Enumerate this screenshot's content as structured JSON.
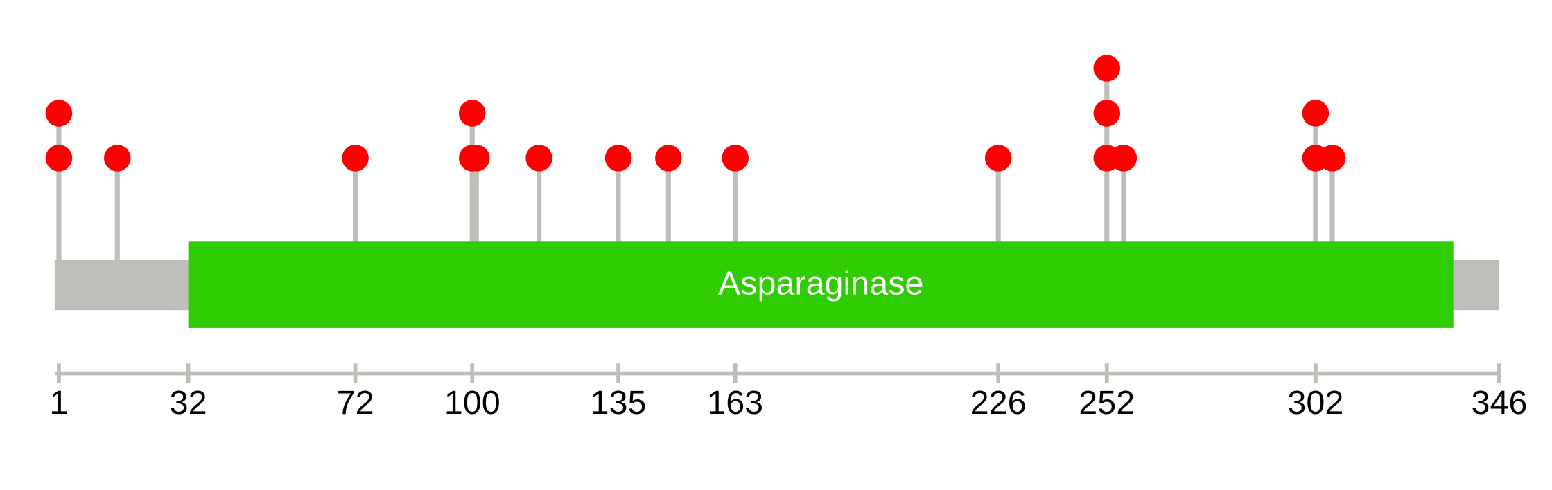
{
  "chart_data": {
    "type": "lollipop",
    "xlim": [
      0,
      346
    ],
    "xticks": [
      1,
      32,
      72,
      100,
      135,
      163,
      226,
      252,
      302,
      346
    ],
    "protein_color": "#bebeb9",
    "domains": [
      {
        "name": "Asparaginase",
        "start": 32,
        "end": 335,
        "color": "#2ecc00"
      }
    ],
    "mutation_color": "#ff0000",
    "stem_color": "#bebeb9",
    "mutations": [
      {
        "position": 1,
        "count": 2
      },
      {
        "position": 15,
        "count": 1
      },
      {
        "position": 72,
        "count": 1
      },
      {
        "position": 100,
        "count": 2
      },
      {
        "position": 101,
        "count": 1
      },
      {
        "position": 116,
        "count": 1
      },
      {
        "position": 135,
        "count": 1
      },
      {
        "position": 147,
        "count": 1
      },
      {
        "position": 163,
        "count": 1
      },
      {
        "position": 226,
        "count": 1
      },
      {
        "position": 252,
        "count": 3
      },
      {
        "position": 256,
        "count": 1
      },
      {
        "position": 302,
        "count": 2
      },
      {
        "position": 306,
        "count": 1
      }
    ]
  }
}
